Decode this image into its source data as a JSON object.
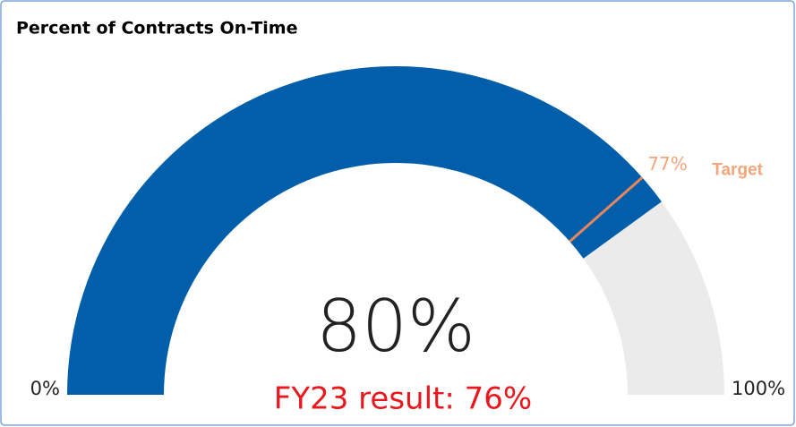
{
  "chart_data": {
    "type": "gauge",
    "title": "Percent of Contracts On-Time",
    "values": [
      80
    ],
    "value_labels": [
      "80%"
    ],
    "color": "#005eaa",
    "track_color": "#ebebeb",
    "ylim": [
      0,
      100
    ],
    "yticks": [
      {
        "value": 0,
        "label": "0%"
      },
      {
        "value": 100,
        "label": "100%"
      }
    ],
    "target": {
      "name": "Target",
      "value": 77,
      "label": "77%",
      "color": "#e8875a"
    },
    "annotation": "FY23 result: 76%"
  }
}
